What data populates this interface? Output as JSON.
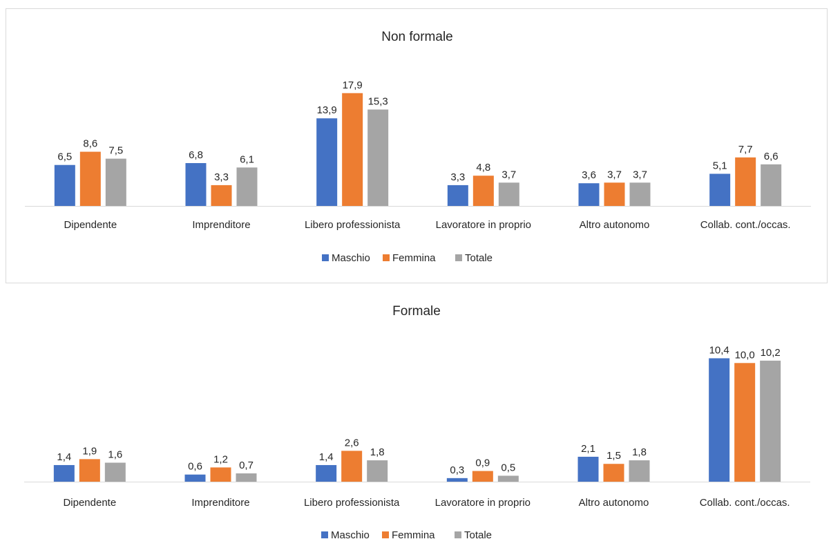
{
  "chart_data": [
    {
      "type": "bar",
      "title": "Non formale",
      "categories": [
        "Dipendente",
        "Imprenditore",
        "Libero professionista",
        "Lavoratore in proprio",
        "Altro autonomo",
        "Collab. cont./occas."
      ],
      "series": [
        {
          "name": "Maschio",
          "values": [
            "6,5",
            "6,8",
            "13,9",
            "3,3",
            "3,6",
            "5,1"
          ],
          "color": "#4472C4"
        },
        {
          "name": "Femmina",
          "values": [
            "8,6",
            "3,3",
            "17,9",
            "4,8",
            "3,7",
            "7,7"
          ],
          "color": "#ED7D31"
        },
        {
          "name": "Totale",
          "values": [
            "7,5",
            "6,1",
            "15,3",
            "3,7",
            "3,7",
            "6,6"
          ],
          "color": "#A5A5A5"
        }
      ],
      "ylim": [
        0,
        20
      ],
      "legend_position": "bottom",
      "grid": false
    },
    {
      "type": "bar",
      "title": "Formale",
      "categories": [
        "Dipendente",
        "Imprenditore",
        "Libero professionista",
        "Lavoratore in proprio",
        "Altro autonomo",
        "Collab. cont./occas."
      ],
      "series": [
        {
          "name": "Maschio",
          "values": [
            "1,4",
            "0,6",
            "1,4",
            "0,3",
            "2,1",
            "10,4"
          ],
          "color": "#4472C4"
        },
        {
          "name": "Femmina",
          "values": [
            "1,9",
            "1,2",
            "2,6",
            "0,9",
            "1,5",
            "10,0"
          ],
          "color": "#ED7D31"
        },
        {
          "name": "Totale",
          "values": [
            "1,6",
            "0,7",
            "1,8",
            "0,5",
            "1,8",
            "10,2"
          ],
          "color": "#A5A5A5"
        }
      ],
      "ylim": [
        0,
        12
      ],
      "legend_position": "bottom",
      "grid": false
    }
  ]
}
